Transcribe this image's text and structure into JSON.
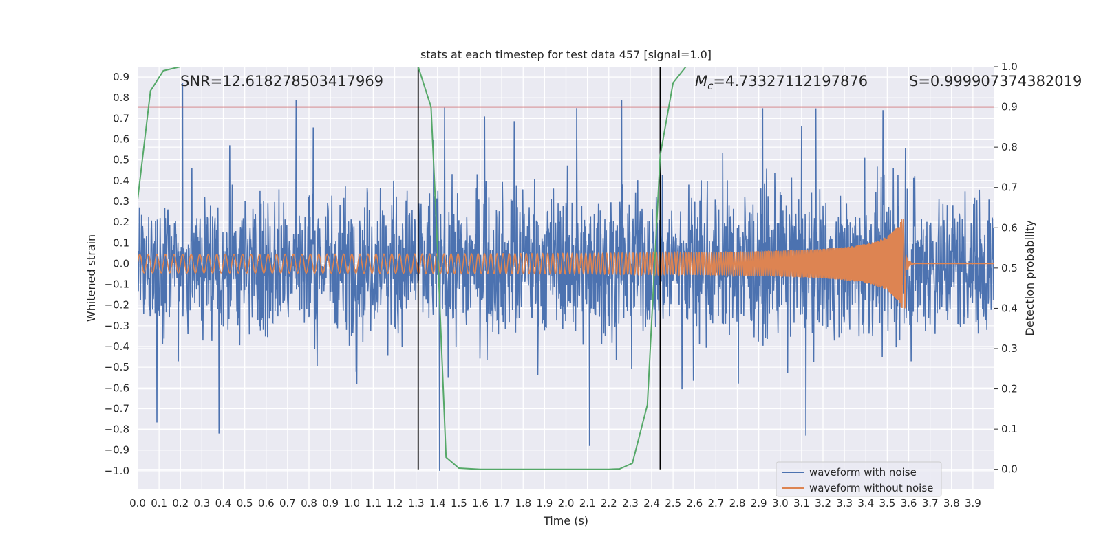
{
  "chart_data": {
    "type": "line",
    "title": "stats at each timestep for test data 457 [signal=1.0]",
    "xlabel": "Time (s)",
    "ylabel_left": "Whitened strain",
    "ylabel_right": "Detection probability",
    "xlim": [
      0.0,
      4.0
    ],
    "ylim_left": [
      -1.09,
      0.95
    ],
    "ylim_right": [
      -0.05,
      1.0
    ],
    "xticks": [
      "0.0",
      "0.1",
      "0.2",
      "0.3",
      "0.4",
      "0.5",
      "0.6",
      "0.7",
      "0.8",
      "0.9",
      "1.0",
      "1.1",
      "1.2",
      "1.3",
      "1.4",
      "1.5",
      "1.6",
      "1.7",
      "1.8",
      "1.9",
      "2.0",
      "2.1",
      "2.2",
      "2.3",
      "2.4",
      "2.5",
      "2.6",
      "2.7",
      "2.8",
      "2.9",
      "3.0",
      "3.1",
      "3.2",
      "3.3",
      "3.4",
      "3.5",
      "3.6",
      "3.7",
      "3.8",
      "3.9"
    ],
    "yticks_left": [
      "0.9",
      "0.8",
      "0.7",
      "0.6",
      "0.5",
      "0.4",
      "0.3",
      "0.2",
      "0.1",
      "0.0",
      "−0.1",
      "−0.2",
      "−0.3",
      "−0.4",
      "−0.5",
      "−0.6",
      "−0.7",
      "−0.8",
      "−0.9",
      "−1.0"
    ],
    "yticks_right": [
      "1.0",
      "0.9",
      "0.8",
      "0.7",
      "0.6",
      "0.5",
      "0.4",
      "0.3",
      "0.2",
      "0.1",
      "0.0"
    ],
    "series": [
      {
        "name": "waveform with noise",
        "color": "#4c72b0",
        "axis": "left",
        "description": "noisy whitened strain, amplitude approx ±0.4 with spikes to +0.87 and −1.0",
        "envelope": {
          "typical_abs": 0.3,
          "max": 0.87,
          "min": -1.0
        }
      },
      {
        "name": "waveform without noise",
        "color": "#dd8452",
        "axis": "left",
        "description": "inspiral chirp, amplitude grows from ~0.04 to ~0.23 near t=3.57 s, then ringdown to 0",
        "chirp": {
          "start_amp": 0.04,
          "peak_amp": 0.23,
          "merger_time": 3.57,
          "f0_hz": 25,
          "f1_hz": 140
        }
      },
      {
        "name": "detection probability",
        "color": "#55a868",
        "axis": "right",
        "x": [
          0.0,
          0.06,
          0.12,
          0.2,
          0.3,
          0.5,
          0.8,
          1.0,
          1.2,
          1.31,
          1.37,
          1.4,
          1.44,
          1.5,
          1.6,
          1.8,
          2.0,
          2.2,
          2.25,
          2.31,
          2.38,
          2.44,
          2.5,
          2.56,
          2.6,
          3.0,
          3.5,
          4.0
        ],
        "values": [
          0.67,
          0.94,
          0.99,
          1.0,
          1.0,
          1.0,
          1.0,
          1.0,
          1.0,
          1.0,
          0.9,
          0.55,
          0.03,
          0.003,
          0.0,
          0.0,
          0.0,
          0.0,
          0.001,
          0.015,
          0.16,
          0.78,
          0.96,
          1.0,
          1.0,
          1.0,
          1.0,
          1.0
        ]
      }
    ],
    "threshold": {
      "value": 0.9,
      "axis": "right",
      "color": "#c44e52"
    },
    "vlines": [
      1.31,
      2.44
    ],
    "annotations": [
      {
        "text": "SNR=12.618278503417969"
      },
      {
        "text": "Mc=4.73327112197876"
      },
      {
        "text": "S=0.999907374382019"
      }
    ],
    "legend": {
      "placement": "lower-right",
      "entries": [
        "waveform with noise",
        "waveform without noise"
      ]
    },
    "grid": true,
    "background": "#eaeaf2"
  }
}
